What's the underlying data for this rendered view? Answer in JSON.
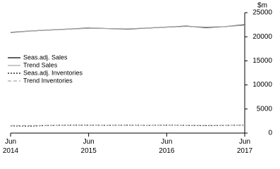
{
  "chart_data": {
    "type": "line",
    "y_unit": "$m",
    "categories": [
      "Jun 2014",
      null,
      null,
      null,
      "Jun 2015",
      null,
      null,
      null,
      "Jun 2016",
      null,
      null,
      null,
      "Jun 2017"
    ],
    "series": [
      {
        "name": "Seas.adj. Sales",
        "color": "#000000",
        "dash": "none",
        "values": [
          20900,
          21200,
          21400,
          21600,
          21800,
          21700,
          21600,
          21800,
          22000,
          22200,
          21900,
          22100,
          22500
        ]
      },
      {
        "name": "Trend Sales",
        "color": "#a6a6a6",
        "dash": "none",
        "values": [
          20950,
          21200,
          21400,
          21600,
          21750,
          21700,
          21650,
          21800,
          22000,
          22150,
          22000,
          22100,
          22400
        ]
      },
      {
        "name": "Seas.adj. Inventories",
        "color": "#000000",
        "dash": "2,2",
        "values": [
          1500,
          1450,
          1600,
          1650,
          1650,
          1600,
          1650,
          1600,
          1650,
          1600,
          1550,
          1600,
          1650
        ]
      },
      {
        "name": "Trend Inventories",
        "color": "#a6a6a6",
        "dash": "5,3",
        "values": [
          1550,
          1550,
          1580,
          1620,
          1630,
          1630,
          1620,
          1620,
          1620,
          1610,
          1600,
          1610,
          1630
        ]
      }
    ],
    "ylim": [
      0,
      25000
    ],
    "yticks": [
      0,
      5000,
      10000,
      15000,
      20000,
      25000
    ],
    "grid": false,
    "legend": "left"
  }
}
